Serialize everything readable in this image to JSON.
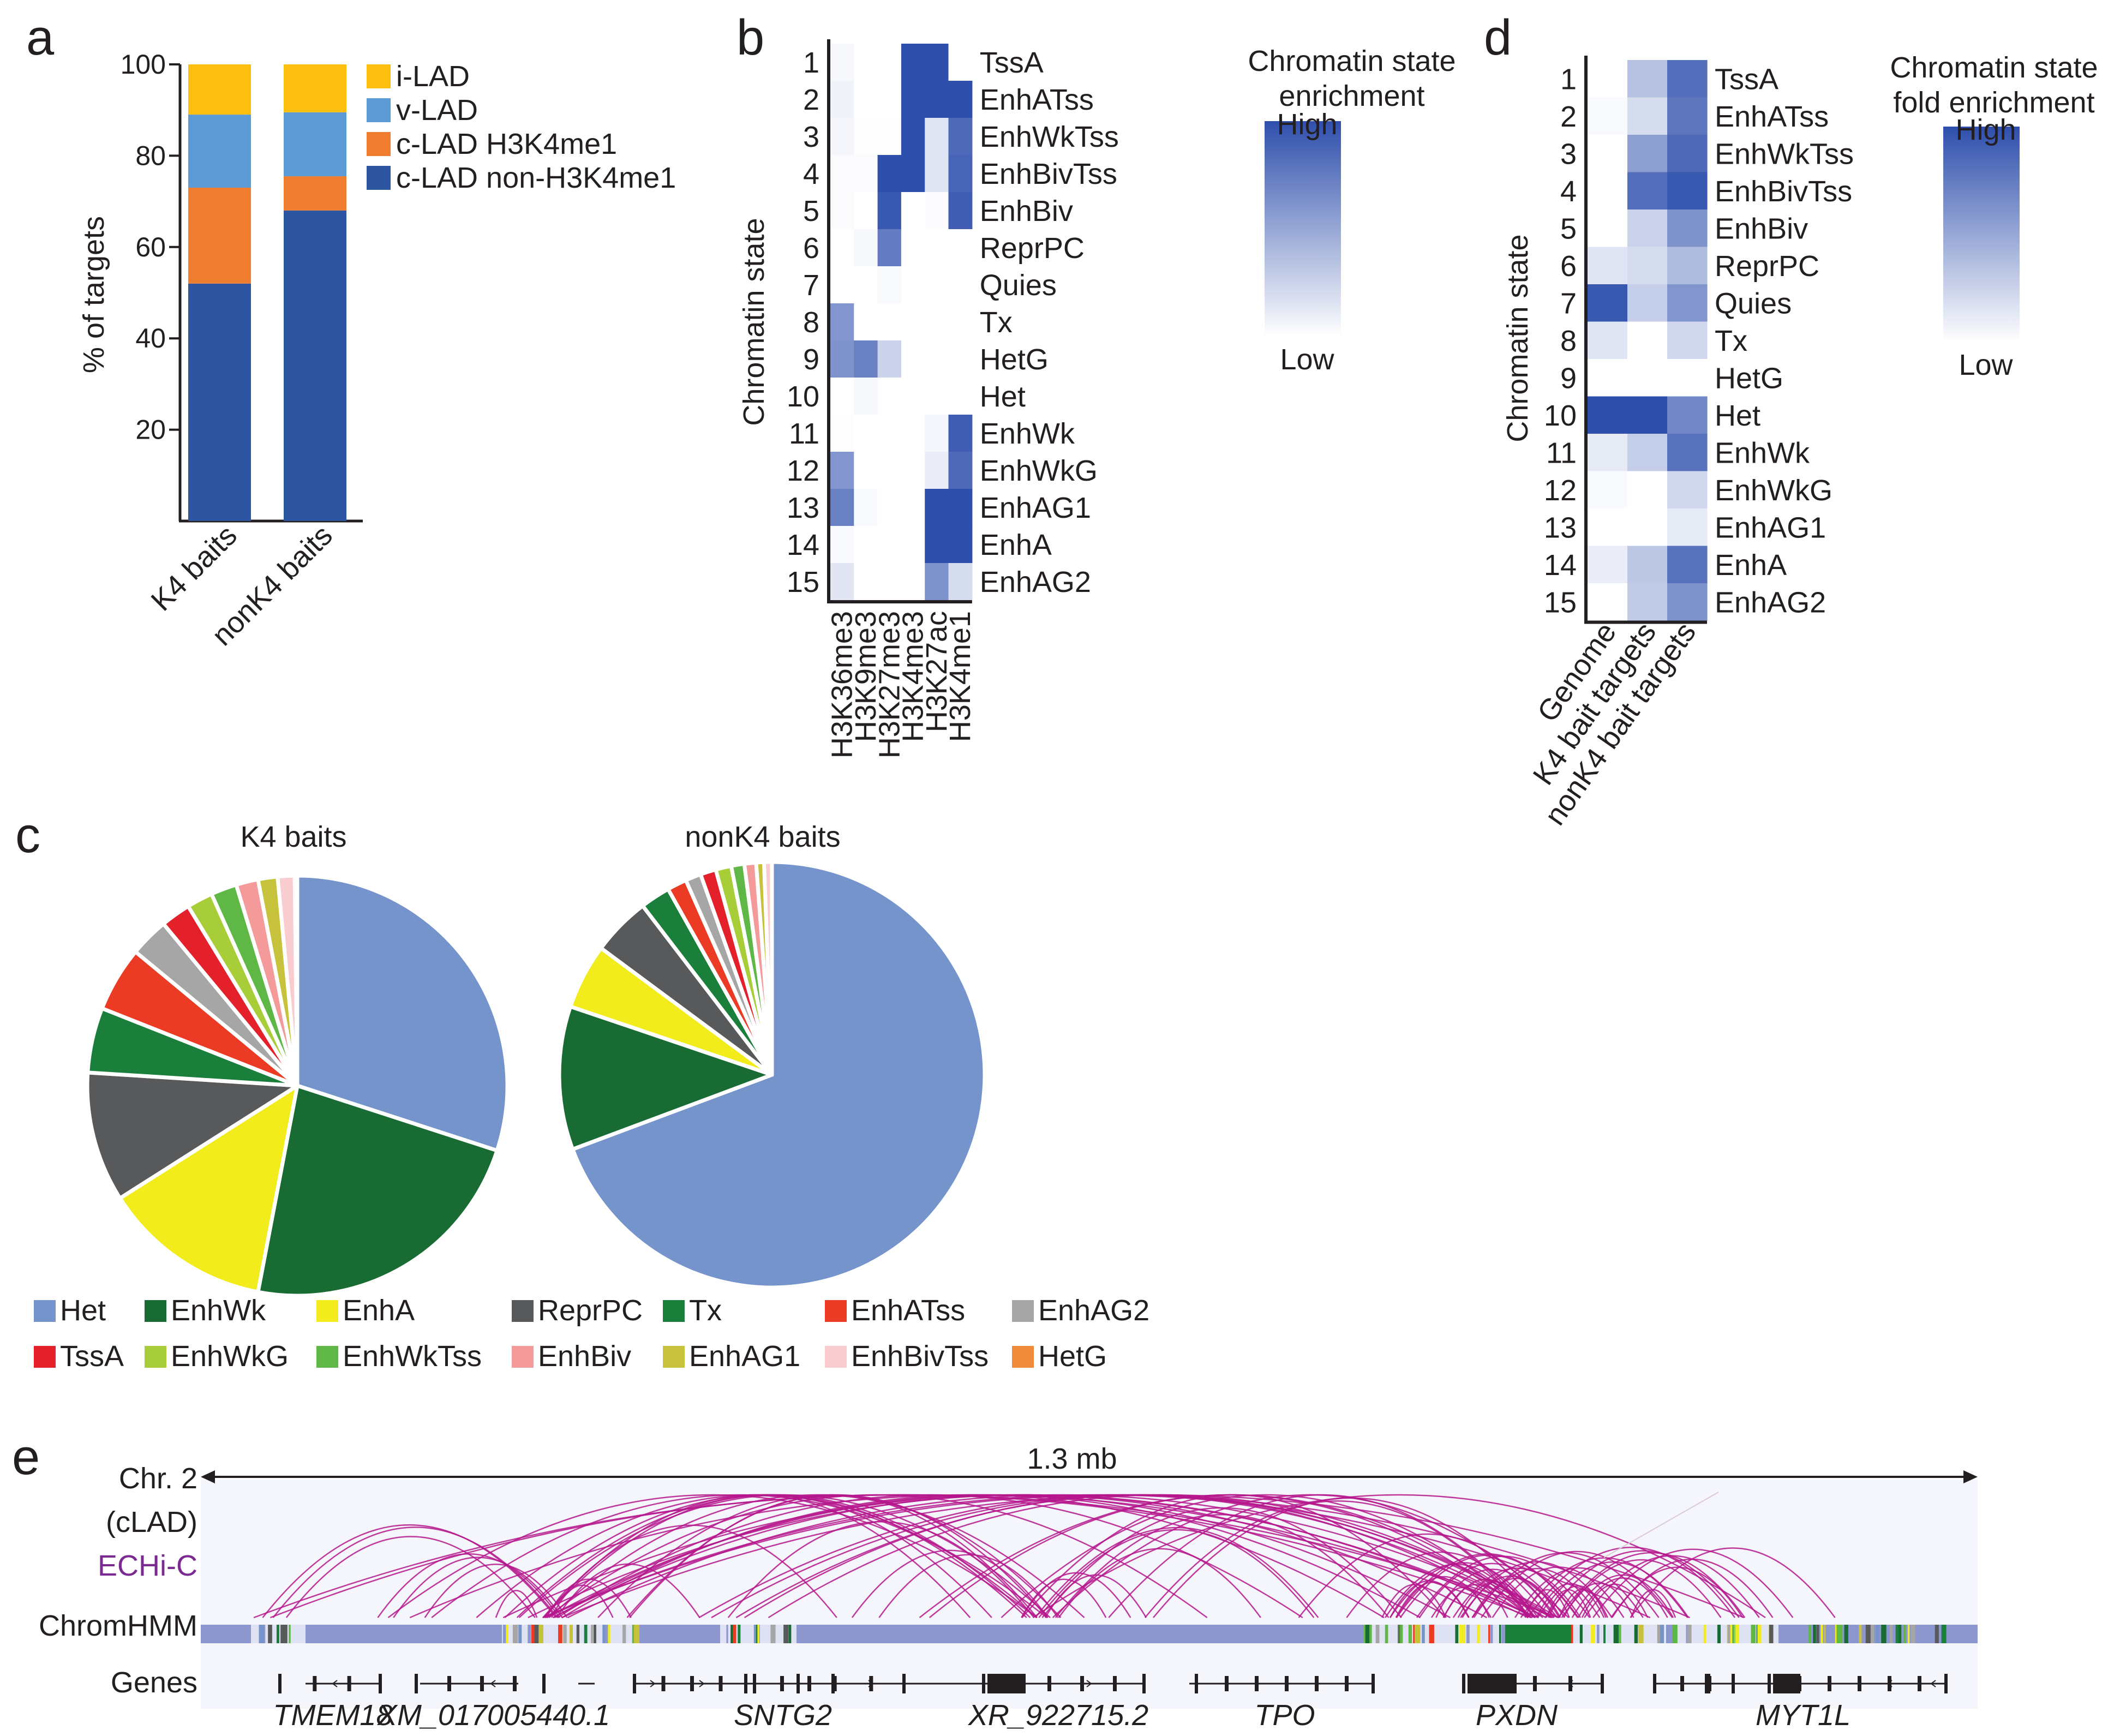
{
  "panels": {
    "a": "a",
    "b": "b",
    "c": "c",
    "d": "d",
    "e": "e"
  },
  "chart_data": [
    {
      "id": "a",
      "type": "bar",
      "stacked": true,
      "ylabel": "% of targets",
      "ylim": [
        0,
        100
      ],
      "yticks": [
        20,
        40,
        60,
        80,
        100
      ],
      "categories": [
        "K4 baits",
        "nonK4 baits"
      ],
      "series": [
        {
          "name": "c-LAD non-H3K4me1",
          "color": "#2e55a0",
          "values": [
            52,
            68
          ]
        },
        {
          "name": "c-LAD H3K4me1",
          "color": "#ee7d30",
          "values": [
            21,
            7.5
          ]
        },
        {
          "name": "v-LAD",
          "color": "#5c9bd6",
          "values": [
            16,
            14
          ]
        },
        {
          "name": "i-LAD",
          "color": "#fdc010",
          "values": [
            11,
            10.5
          ]
        }
      ],
      "legend_order": [
        "i-LAD",
        "v-LAD",
        "c-LAD H3K4me1",
        "c-LAD non-H3K4me1"
      ]
    },
    {
      "id": "b",
      "type": "heatmap",
      "ylabel": "Chromatin state",
      "rows": [
        "1",
        "2",
        "3",
        "4",
        "5",
        "6",
        "7",
        "8",
        "9",
        "10",
        "11",
        "12",
        "13",
        "14",
        "15"
      ],
      "row_labels": [
        "TssA",
        "EnhATss",
        "EnhWkTss",
        "EnhBivTss",
        "EnhBiv",
        "ReprPC",
        "Quies",
        "Tx",
        "HetG",
        "Het",
        "EnhWk",
        "EnhWkG",
        "EnhAG1",
        "EnhA",
        "EnhAG2"
      ],
      "columns": [
        "H3K36me3",
        "H3K9me3",
        "H3K27me3",
        "H3K4me3",
        "H3K27ac",
        "H3K4me1"
      ],
      "values": [
        [
          0.04,
          0,
          0,
          1,
          1,
          0
        ],
        [
          0.07,
          0,
          0,
          1,
          1,
          1
        ],
        [
          0.05,
          0.01,
          0.01,
          1,
          0.15,
          0.85
        ],
        [
          0.02,
          0.02,
          1,
          1,
          0.15,
          0.88
        ],
        [
          0.02,
          0,
          0.95,
          0,
          0.02,
          0.92
        ],
        [
          0,
          0.04,
          0.75,
          0,
          0,
          0
        ],
        [
          0,
          0,
          0.03,
          0,
          0,
          0
        ],
        [
          0.6,
          0,
          0,
          0,
          0,
          0
        ],
        [
          0.62,
          0.72,
          0.25,
          0,
          0,
          0
        ],
        [
          0,
          0.04,
          0,
          0,
          0,
          0
        ],
        [
          0.01,
          0,
          0,
          0,
          0.05,
          0.92
        ],
        [
          0.6,
          0,
          0,
          0,
          0.1,
          0.85
        ],
        [
          0.72,
          0.03,
          0,
          0,
          1,
          1
        ],
        [
          0.03,
          0,
          0,
          0,
          1,
          1
        ],
        [
          0.14,
          0,
          0,
          0,
          0.62,
          0.2
        ]
      ],
      "colorbar": {
        "title_lines": [
          "Chromatin state",
          "enrichment"
        ],
        "high": "High",
        "low": "Low"
      }
    },
    {
      "id": "d",
      "type": "heatmap",
      "ylabel": "Chromatin state",
      "rows": [
        "1",
        "2",
        "3",
        "4",
        "5",
        "6",
        "7",
        "8",
        "9",
        "10",
        "11",
        "12",
        "13",
        "14",
        "15"
      ],
      "row_labels": [
        "TssA",
        "EnhATss",
        "EnhWkTss",
        "EnhBivTss",
        "EnhBiv",
        "ReprPC",
        "Quies",
        "Tx",
        "HetG",
        "Het",
        "EnhWk",
        "EnhWkG",
        "EnhAG1",
        "EnhA",
        "EnhAG2"
      ],
      "columns": [
        "Genome",
        "K4 bait targets",
        "nonK4 bait targets"
      ],
      "values": [
        [
          0,
          0.35,
          0.82
        ],
        [
          0.03,
          0.2,
          0.78
        ],
        [
          0,
          0.55,
          0.85
        ],
        [
          0,
          0.82,
          0.95
        ],
        [
          0,
          0.25,
          0.62
        ],
        [
          0.15,
          0.2,
          0.38
        ],
        [
          0.95,
          0.28,
          0.6
        ],
        [
          0.15,
          0,
          0.22
        ],
        [
          0,
          0,
          0
        ],
        [
          1,
          1,
          0.68
        ],
        [
          0.12,
          0.28,
          0.8
        ],
        [
          0.03,
          0,
          0.22
        ],
        [
          0,
          0,
          0.12
        ],
        [
          0.1,
          0.32,
          0.8
        ],
        [
          0,
          0.3,
          0.62
        ]
      ],
      "colorbar": {
        "title_lines": [
          "Chromatin state",
          "fold enrichment"
        ],
        "high": "High",
        "low": "Low"
      }
    },
    {
      "id": "c",
      "type": "pie",
      "charts": [
        {
          "title": "K4 baits",
          "values": [
            30,
            23,
            13,
            10,
            5,
            5,
            3,
            2.3,
            2,
            2,
            1.7,
            1.5,
            1.3,
            0.2
          ]
        },
        {
          "title": "nonK4 baits",
          "values": [
            70,
            11,
            5,
            4.5,
            2.3,
            1.5,
            1.2,
            1.2,
            1.2,
            1,
            0.9,
            0.6,
            0.6,
            0
          ]
        }
      ],
      "slice_labels": [
        "Het",
        "EnhWk",
        "EnhA",
        "ReprPC",
        "Tx",
        "EnhATss",
        "EnhAG2",
        "TssA",
        "EnhWkG",
        "EnhWkTss",
        "EnhBiv",
        "EnhAG1",
        "EnhBivTss",
        "HetG"
      ],
      "legend": [
        {
          "label": "Het",
          "color": "#7494cb"
        },
        {
          "label": "EnhWk",
          "color": "#186b32"
        },
        {
          "label": "EnhA",
          "color": "#f2ec1c"
        },
        {
          "label": "ReprPC",
          "color": "#58595b"
        },
        {
          "label": "Tx",
          "color": "#1b7f3c"
        },
        {
          "label": "EnhATss",
          "color": "#eb3b24"
        },
        {
          "label": "EnhAG2",
          "color": "#a6a6a6"
        },
        {
          "label": "TssA",
          "color": "#e4212b"
        },
        {
          "label": "EnhWkG",
          "color": "#a7ce38"
        },
        {
          "label": "EnhWkTss",
          "color": "#5fb846"
        },
        {
          "label": "EnhBiv",
          "color": "#f49a9a"
        },
        {
          "label": "EnhAG1",
          "color": "#c7c23c"
        },
        {
          "label": "EnhBivTss",
          "color": "#f9cdd0"
        },
        {
          "label": "HetG",
          "color": "#ef8a3b"
        }
      ]
    },
    {
      "id": "e",
      "type": "genome_track",
      "scale_label": "1.3 mb",
      "track_labels": [
        "Chr. 2",
        "(cLAD)",
        "ECHi-C",
        "ChromHMM",
        "Genes"
      ],
      "genes": [
        "TMEM18",
        "XM_017005440.1",
        "SNTG2",
        "XR_922715.2",
        "TPO",
        "PXDN",
        "MYT1L"
      ]
    }
  ],
  "colors": {
    "heat_high": "#2f4fac",
    "ink": "#231f20",
    "arc": "#b5168c",
    "echic_label": "#7a2a91",
    "track_bg": "#f4f6fb",
    "chromhmm_base": "#8c96cf"
  }
}
